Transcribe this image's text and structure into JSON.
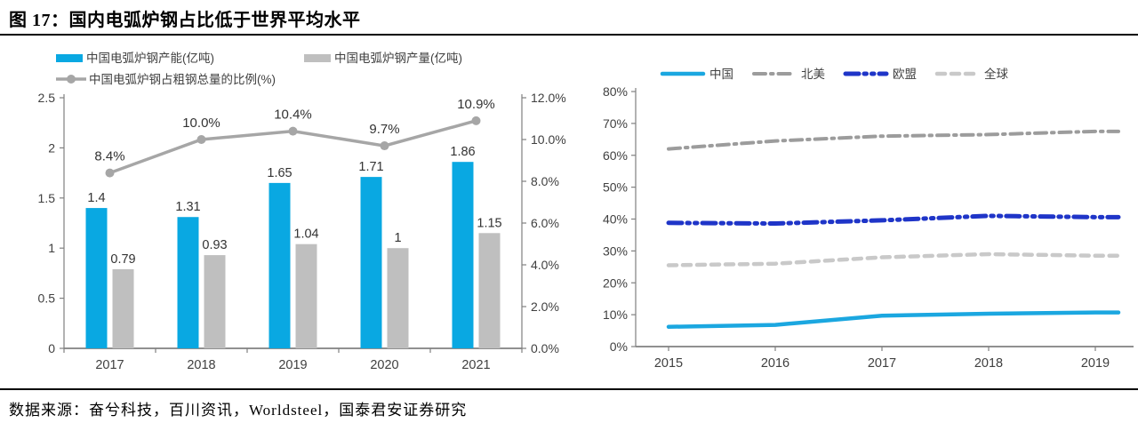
{
  "figure": {
    "title": "图 17：国内电弧炉钢占比低于世界平均水平",
    "source": "数据来源：奋兮科技，百川资讯，Worldsteel，国泰君安证券研究"
  },
  "colors": {
    "capacity_bar": "#09A8E2",
    "output_bar": "#BFBFBF",
    "ratio_line": "#A6A6A6",
    "china_line": "#1BA7E0",
    "north_america_line": "#9C9C9C",
    "eu_line": "#1F35C8",
    "global_line": "#C9C9C9",
    "axis": "#808080",
    "tick_text": "#404040",
    "data_label": "#333333"
  },
  "chart_data": [
    {
      "id": "china-eaf-combo",
      "type": "bar",
      "categories": [
        "2017",
        "2018",
        "2019",
        "2020",
        "2021"
      ],
      "series": [
        {
          "name": "中国电弧炉钢产能(亿吨)",
          "kind": "bar",
          "axis": "left",
          "color": "#09A8E2",
          "values": [
            1.4,
            1.31,
            1.65,
            1.71,
            1.86
          ],
          "labels": [
            "1.4",
            "1.31",
            "1.65",
            "1.71",
            "1.86"
          ]
        },
        {
          "name": "中国电弧炉钢产量(亿吨)",
          "kind": "bar",
          "axis": "left",
          "color": "#BFBFBF",
          "values": [
            0.79,
            0.93,
            1.04,
            1.0,
            1.15
          ],
          "labels": [
            "0.79",
            "0.93",
            "1.04",
            "1",
            "1.15"
          ]
        },
        {
          "name": "中国电弧炉钢占粗钢总量的比例(%)",
          "kind": "line",
          "axis": "right",
          "color": "#A6A6A6",
          "values": [
            8.4,
            10.0,
            10.4,
            9.7,
            10.9
          ],
          "labels": [
            "8.4%",
            "10.0%",
            "10.4%",
            "9.7%",
            "10.9%"
          ]
        }
      ],
      "left_axis": {
        "min": 0,
        "max": 2.5,
        "ticks": [
          "0",
          "0.5",
          "1",
          "1.5",
          "2",
          "2.5"
        ]
      },
      "right_axis": {
        "min": 0,
        "max": 12,
        "ticks": [
          "0.0%",
          "2.0%",
          "4.0%",
          "6.0%",
          "8.0%",
          "10.0%",
          "12.0%"
        ]
      },
      "legend_position": "top-left",
      "grid": false
    },
    {
      "id": "eaf-share-by-region",
      "type": "line",
      "x_ticks": [
        "2015",
        "2016",
        "2017",
        "2018",
        "2019"
      ],
      "series": [
        {
          "name": "中国",
          "color": "#1BA7E0",
          "dash": "solid",
          "values": [
            6.2,
            6.8,
            9.7,
            10.3,
            10.7
          ]
        },
        {
          "name": "北美",
          "color": "#9C9C9C",
          "dash": "dash-dot",
          "values": [
            62,
            64.5,
            66,
            66.5,
            67.5
          ]
        },
        {
          "name": "欧盟",
          "color": "#1F35C8",
          "dash": "dash-dot-dot",
          "values": [
            38.8,
            38.6,
            39.6,
            41,
            40.6
          ]
        },
        {
          "name": "全球",
          "color": "#C9C9C9",
          "dash": "dashed",
          "values": [
            25.5,
            26,
            28,
            29,
            28.5
          ]
        }
      ],
      "y_axis": {
        "min": 0,
        "max": 80,
        "ticks": [
          "0%",
          "10%",
          "20%",
          "30%",
          "40%",
          "50%",
          "60%",
          "70%",
          "80%"
        ]
      },
      "legend_position": "top",
      "grid": false,
      "unit": "%"
    }
  ]
}
